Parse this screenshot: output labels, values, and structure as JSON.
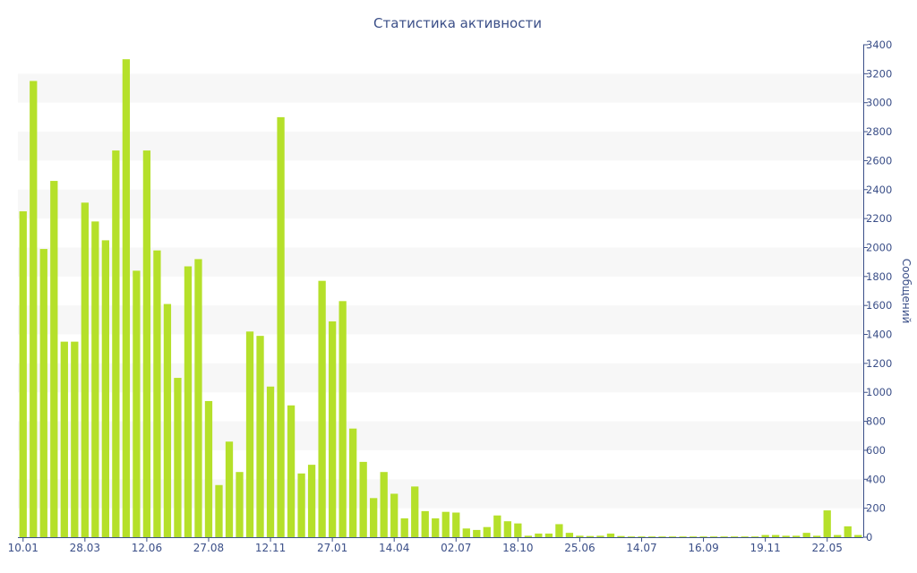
{
  "chart_data": {
    "type": "bar",
    "title": "Статистика активности",
    "ylabel": "Сообщений",
    "xlabel": "",
    "ylim": [
      0,
      3400
    ],
    "y_ticks": [
      0,
      200,
      400,
      600,
      800,
      1000,
      1200,
      1400,
      1600,
      1800,
      2000,
      2200,
      2400,
      2600,
      2800,
      3000,
      3200,
      3400
    ],
    "y_axis_side": "right",
    "grid": "alternating horizontal bands",
    "x_tick_labels": [
      {
        "index": 0,
        "label": "10.01"
      },
      {
        "index": 6,
        "label": "28.03"
      },
      {
        "index": 12,
        "label": "12.06"
      },
      {
        "index": 18,
        "label": "27.08"
      },
      {
        "index": 24,
        "label": "12.11"
      },
      {
        "index": 30,
        "label": "27.01"
      },
      {
        "index": 36,
        "label": "14.04"
      },
      {
        "index": 42,
        "label": "02.07"
      },
      {
        "index": 48,
        "label": "18.10"
      },
      {
        "index": 54,
        "label": "25.06"
      },
      {
        "index": 60,
        "label": "14.07"
      },
      {
        "index": 66,
        "label": "16.09"
      },
      {
        "index": 72,
        "label": "19.11"
      },
      {
        "index": 78,
        "label": "22.05"
      }
    ],
    "values": [
      2250,
      3150,
      1990,
      2460,
      1350,
      1350,
      2310,
      2180,
      2050,
      2670,
      3300,
      1840,
      2670,
      1980,
      1610,
      1100,
      1870,
      1920,
      940,
      360,
      660,
      450,
      1420,
      1390,
      1040,
      2900,
      910,
      440,
      500,
      1770,
      1490,
      1630,
      750,
      520,
      270,
      450,
      300,
      130,
      350,
      180,
      130,
      175,
      170,
      60,
      50,
      70,
      150,
      110,
      95,
      10,
      25,
      25,
      90,
      30,
      10,
      8,
      10,
      25,
      8,
      5,
      5,
      5,
      5,
      5,
      5,
      5,
      5,
      5,
      5,
      5,
      5,
      5,
      15,
      15,
      10,
      10,
      30,
      10,
      185,
      15,
      75,
      15
    ],
    "colors": {
      "bar": "#b5e02a",
      "text": "#3b4f88",
      "axis": "#3b4f88",
      "band": "#f7f7f7"
    }
  }
}
